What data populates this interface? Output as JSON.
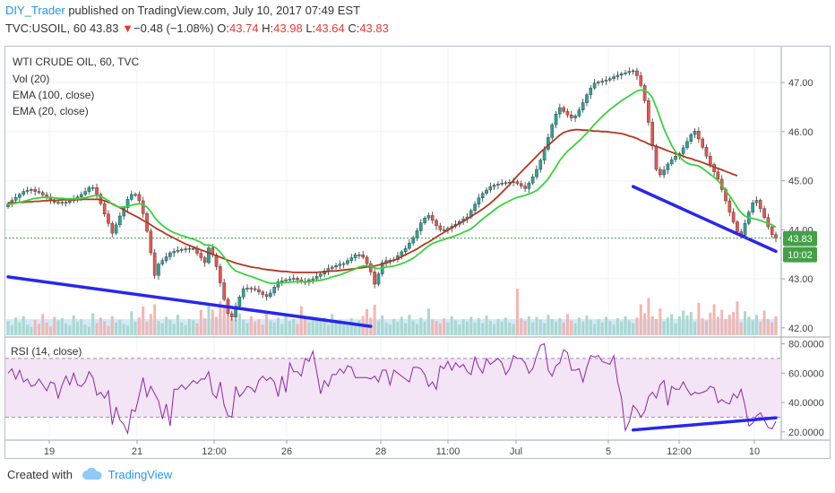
{
  "header": {
    "user": "DIY_Trader",
    "published_text": " published on TradingView.com, July 10, 2017 07:49 EST",
    "symbol": "TVC:USOIL, 60",
    "last": "43.83",
    "change_arrow": "▼",
    "change": "−0.48 (−1.08%)",
    "o_label": "O:",
    "o_value": "43.74",
    "h_label": "H:",
    "h_value": "43.98",
    "l_label": "L:",
    "l_value": "43.64",
    "c_label": "C:",
    "c_value": "43.83"
  },
  "legend": {
    "title": "WTI CRUDE OIL, 60, TVC",
    "vol": "Vol (20)",
    "ema100": "EMA (100, close)",
    "ema20": "EMA (20, close)"
  },
  "rsi_legend": "RSI (14, close)",
  "price_badge": "43.83",
  "time_badge": "10:02",
  "footer": {
    "created_with": "Created with",
    "brand": "TradingView"
  },
  "colors": {
    "up": "#26a69a",
    "down": "#ef5350",
    "ema20": "#39d23c",
    "ema100": "#b5361e",
    "trendline": "#2727ee",
    "rsi": "#8e24aa",
    "rsi_band": "#f3e5f5",
    "badge": "#43a047"
  },
  "chart_data": [
    {
      "type": "candlestick",
      "title": "WTI CRUDE OIL, 60, TVC",
      "x_ticks": [
        "19",
        "21",
        "12:00",
        "26",
        "28",
        "11:00",
        "Jul",
        "5",
        "12:00",
        "10"
      ],
      "y_ticks": [
        "47.00",
        "46.00",
        "45.00",
        "44.00",
        "43.00",
        "42.00"
      ],
      "ylim": [
        41.85,
        47.55
      ],
      "bars": 200,
      "close": [
        44.52,
        44.6,
        44.66,
        44.72,
        44.78,
        44.8,
        44.82,
        44.78,
        44.76,
        44.71,
        44.66,
        44.61,
        44.56,
        44.56,
        44.56,
        44.56,
        44.59,
        44.63,
        44.67,
        44.72,
        44.78,
        44.86,
        44.86,
        44.72,
        44.53,
        44.32,
        44.13,
        43.93,
        44.1,
        44.28,
        44.45,
        44.62,
        44.72,
        44.72,
        44.59,
        44.33,
        43.97,
        43.53,
        43.07,
        43.3,
        43.37,
        43.45,
        43.53,
        43.56,
        43.58,
        43.6,
        43.61,
        43.62,
        43.62,
        43.52,
        43.43,
        43.33,
        43.63,
        43.49,
        43.25,
        42.92,
        42.58,
        42.29,
        42.22,
        42.44,
        42.63,
        42.8,
        42.81,
        42.8,
        42.78,
        42.73,
        42.68,
        42.64,
        42.71,
        42.83,
        42.94,
        42.96,
        42.98,
        42.99,
        43.01,
        42.98,
        42.94,
        42.93,
        42.98,
        43.0,
        43.05,
        43.1,
        43.16,
        43.21,
        43.24,
        43.27,
        43.3,
        43.31,
        43.37,
        43.43,
        43.49,
        43.49,
        43.44,
        43.31,
        43.14,
        42.89,
        43.1,
        43.33,
        43.37,
        43.38,
        43.39,
        43.47,
        43.55,
        43.62,
        43.73,
        43.84,
        43.98,
        44.14,
        44.24,
        44.29,
        44.19,
        44.08,
        44.0,
        43.99,
        44.03,
        44.07,
        44.11,
        44.17,
        44.22,
        44.26,
        44.39,
        44.52,
        44.65,
        44.74,
        44.81,
        44.88,
        44.91,
        44.93,
        44.95,
        44.96,
        44.97,
        44.98,
        44.94,
        44.89,
        44.84,
        44.95,
        45.08,
        45.23,
        45.42,
        45.64,
        45.88,
        46.14,
        46.36,
        46.49,
        46.41,
        46.34,
        46.28,
        46.32,
        46.44,
        46.59,
        46.75,
        46.89,
        46.99,
        47.01,
        47.03,
        47.05,
        47.08,
        47.12,
        47.15,
        47.18,
        47.2,
        47.23,
        47.24,
        47.14,
        46.94,
        46.63,
        46.19,
        45.71,
        45.23,
        45.12,
        45.22,
        45.34,
        45.43,
        45.5,
        45.55,
        45.67,
        45.8,
        45.94,
        46.01,
        45.85,
        45.68,
        45.5,
        45.33,
        45.18,
        45.03,
        44.82,
        44.59,
        44.36,
        44.16,
        43.96,
        43.89,
        44.13,
        44.36,
        44.55,
        44.6,
        44.43,
        44.25,
        44.06,
        43.9,
        43.83
      ],
      "ema20": [
        44.52,
        44.53,
        44.54,
        44.56,
        44.58,
        44.6,
        44.62,
        44.64,
        44.65,
        44.66,
        44.66,
        44.66,
        44.65,
        44.64,
        44.64,
        44.63,
        44.63,
        44.63,
        44.63,
        44.64,
        44.65,
        44.67,
        44.69,
        44.7,
        44.68,
        44.64,
        44.59,
        44.52,
        44.48,
        44.46,
        44.46,
        44.47,
        44.5,
        44.52,
        44.53,
        44.51,
        44.46,
        44.37,
        44.25,
        44.16,
        44.09,
        44.03,
        43.98,
        43.94,
        43.91,
        43.88,
        43.86,
        43.83,
        43.81,
        43.78,
        43.74,
        43.69,
        43.69,
        43.67,
        43.62,
        43.54,
        43.44,
        43.33,
        43.23,
        43.16,
        43.13,
        43.1,
        43.07,
        43.05,
        43.02,
        42.99,
        42.96,
        42.93,
        42.91,
        42.91,
        42.91,
        42.92,
        42.92,
        42.93,
        42.94,
        42.94,
        42.94,
        42.94,
        42.95,
        42.95,
        42.96,
        42.97,
        42.99,
        43.01,
        43.04,
        43.06,
        43.08,
        43.11,
        43.14,
        43.17,
        43.2,
        43.24,
        43.26,
        43.27,
        43.26,
        43.22,
        43.21,
        43.22,
        43.24,
        43.25,
        43.26,
        43.28,
        43.31,
        43.34,
        43.38,
        43.42,
        43.48,
        43.54,
        43.61,
        43.67,
        43.72,
        43.75,
        43.78,
        43.8,
        43.83,
        43.85,
        43.88,
        43.91,
        43.95,
        43.98,
        44.02,
        44.08,
        44.15,
        44.22,
        44.28,
        44.34,
        44.4,
        44.46,
        44.51,
        44.55,
        44.59,
        44.63,
        44.66,
        44.68,
        44.7,
        44.73,
        44.76,
        44.8,
        44.87,
        44.95,
        45.04,
        45.16,
        45.28,
        45.41,
        45.51,
        45.6,
        45.67,
        45.74,
        45.81,
        45.89,
        45.97,
        46.06,
        46.15,
        46.23,
        46.31,
        46.38,
        46.45,
        46.51,
        46.57,
        46.63,
        46.68,
        46.73,
        46.78,
        46.83,
        46.85,
        46.84,
        46.79,
        46.69,
        46.5,
        46.28,
        46.06,
        45.88,
        45.72,
        45.59,
        45.49,
        45.41,
        45.36,
        45.33,
        45.32,
        45.3,
        45.25,
        45.19,
        45.13,
        45.07,
        45.0,
        44.91,
        44.8,
        44.69,
        44.58,
        44.45,
        44.35,
        44.28,
        44.24,
        44.23,
        44.21,
        44.19,
        44.16,
        44.13,
        44.1,
        44.05
      ],
      "ema100": [
        44.55,
        44.55,
        44.55,
        44.56,
        44.56,
        44.57,
        44.57,
        44.58,
        44.58,
        44.59,
        44.59,
        44.6,
        44.6,
        44.6,
        44.61,
        44.61,
        44.61,
        44.61,
        44.61,
        44.62,
        44.62,
        44.62,
        44.62,
        44.62,
        44.61,
        44.59,
        44.56,
        44.53,
        44.49,
        44.45,
        44.41,
        44.36,
        44.32,
        44.28,
        44.24,
        44.19,
        44.15,
        44.1,
        44.05,
        44.0,
        43.96,
        43.91,
        43.87,
        43.83,
        43.79,
        43.75,
        43.71,
        43.68,
        43.65,
        43.62,
        43.59,
        43.56,
        43.53,
        43.5,
        43.47,
        43.44,
        43.41,
        43.38,
        43.35,
        43.32,
        43.3,
        43.28,
        43.26,
        43.24,
        43.23,
        43.22,
        43.2,
        43.19,
        43.18,
        43.17,
        43.16,
        43.15,
        43.15,
        43.14,
        43.13,
        43.13,
        43.13,
        43.13,
        43.13,
        43.13,
        43.13,
        43.14,
        43.14,
        43.15,
        43.16,
        43.16,
        43.17,
        43.18,
        43.19,
        43.2,
        43.21,
        43.22,
        43.23,
        43.24,
        43.25,
        43.26,
        43.28,
        43.3,
        43.32,
        43.35,
        43.38,
        43.41,
        43.45,
        43.49,
        43.53,
        43.57,
        43.61,
        43.66,
        43.71,
        43.75,
        43.8,
        43.85,
        43.9,
        43.95,
        43.99,
        44.04,
        44.09,
        44.13,
        44.17,
        44.22,
        44.27,
        44.32,
        44.37,
        44.42,
        44.48,
        44.54,
        44.61,
        44.68,
        44.76,
        44.84,
        44.92,
        45.01,
        45.1,
        45.18,
        45.26,
        45.34,
        45.42,
        45.5,
        45.58,
        45.65,
        45.72,
        45.79,
        45.86,
        45.93,
        45.98,
        46.01,
        46.03,
        46.04,
        46.04,
        46.03,
        46.03,
        46.02,
        46.01,
        46.01,
        46.0,
        46.0,
        45.99,
        45.98,
        45.97,
        45.96,
        45.94,
        45.91,
        45.89,
        45.86,
        45.82,
        45.79,
        45.75,
        45.72,
        45.7,
        45.67,
        45.64,
        45.61,
        45.58,
        45.55,
        45.53,
        45.5,
        45.47,
        45.45,
        45.42,
        45.4,
        45.37,
        45.34,
        45.31,
        45.28,
        45.25,
        45.22,
        45.19,
        45.16,
        45.13,
        45.1
      ],
      "volume": [
        20,
        14,
        25,
        18,
        27,
        15,
        12,
        22,
        16,
        30,
        18,
        13,
        26,
        21,
        24,
        17,
        14,
        28,
        19,
        23,
        15,
        12,
        31,
        17,
        25,
        20,
        13,
        27,
        18,
        22,
        16,
        14,
        34,
        19,
        25,
        41,
        19,
        30,
        44,
        20,
        17,
        26,
        22,
        16,
        29,
        18,
        14,
        23,
        21,
        17,
        36,
        24,
        46,
        36,
        26,
        48,
        39,
        27,
        24,
        20,
        31,
        22,
        17,
        27,
        19,
        23,
        15,
        33,
        21,
        18,
        25,
        16,
        29,
        20,
        23,
        16,
        41,
        26,
        18,
        24,
        21,
        20,
        25,
        15,
        30,
        19,
        22,
        17,
        14,
        24,
        18,
        21,
        27,
        37,
        25,
        43,
        21,
        28,
        18,
        15,
        23,
        19,
        26,
        17,
        29,
        21,
        16,
        25,
        19,
        38,
        22,
        20,
        17,
        24,
        18,
        27,
        21,
        15,
        23,
        19,
        26,
        18,
        24,
        17,
        28,
        20,
        16,
        23,
        19,
        25,
        18,
        16,
        66,
        24,
        20,
        27,
        18,
        26,
        22,
        17,
        29,
        23,
        19,
        24,
        18,
        30,
        21,
        17,
        25,
        19,
        28,
        22,
        16,
        23,
        18,
        26,
        20,
        15,
        24,
        19,
        27,
        21,
        17,
        25,
        44,
        31,
        53,
        27,
        23,
        38,
        20,
        25,
        30,
        17,
        27,
        35,
        28,
        33,
        19,
        46,
        24,
        21,
        32,
        44,
        26,
        36,
        23,
        29,
        33,
        48,
        18,
        34,
        26,
        21,
        29,
        19,
        35,
        23,
        18,
        27
      ],
      "trendlines": [
        [
          [
            0,
            43.04
          ],
          [
            94,
            42.03
          ]
        ],
        [
          [
            162,
            44.88
          ],
          [
            199,
            43.56
          ]
        ]
      ],
      "last_price": 43.83
    },
    {
      "type": "line",
      "title": "RSI (14, close)",
      "y_ticks": [
        "80.0000",
        "60.0000",
        "40.0000",
        "20.0000"
      ],
      "ylim": [
        15,
        84
      ],
      "bands": [
        30,
        70
      ],
      "values": [
        60,
        63,
        56,
        62,
        54,
        56,
        51,
        52,
        56,
        52,
        48,
        54,
        53,
        43,
        52,
        58,
        52,
        60,
        52,
        51,
        54,
        61,
        57,
        45,
        47,
        43,
        48,
        25,
        37,
        28,
        25,
        19,
        35,
        34,
        45,
        57,
        44,
        51,
        46,
        41,
        29,
        39,
        24,
        49,
        49,
        52,
        49,
        52,
        55,
        53,
        56,
        56,
        61,
        46,
        43,
        54,
        38,
        31,
        30,
        51,
        44,
        47,
        51,
        50,
        47,
        55,
        58,
        55,
        57,
        54,
        44,
        58,
        47,
        67,
        61,
        61,
        58,
        70,
        68,
        75,
        61,
        46,
        55,
        51,
        59,
        59,
        63,
        60,
        65,
        64,
        57,
        57,
        57,
        57,
        56,
        58,
        54,
        62,
        62,
        52,
        62,
        60,
        58,
        56,
        54,
        64,
        64,
        63,
        59,
        51,
        54,
        49,
        65,
        63,
        68,
        62,
        67,
        64,
        66,
        61,
        59,
        71,
        64,
        60,
        70,
        66,
        68,
        70,
        67,
        59,
        63,
        72,
        70,
        70,
        67,
        60,
        63,
        72,
        79,
        80,
        62,
        58,
        65,
        67,
        76,
        74,
        62,
        62,
        63,
        54,
        64,
        72,
        71,
        72,
        68,
        67,
        66,
        72,
        54,
        43,
        21,
        27,
        38,
        35,
        30,
        34,
        44,
        47,
        43,
        52,
        55,
        38,
        51,
        49,
        49,
        54,
        49,
        45,
        47,
        46,
        47,
        48,
        51,
        50,
        40,
        42,
        40,
        39,
        46,
        43,
        49,
        38,
        24,
        26,
        31,
        33,
        28,
        23,
        22,
        27
      ],
      "trendline": [
        [
          162,
          21.3
        ],
        [
          199,
          29.6
        ]
      ]
    }
  ]
}
